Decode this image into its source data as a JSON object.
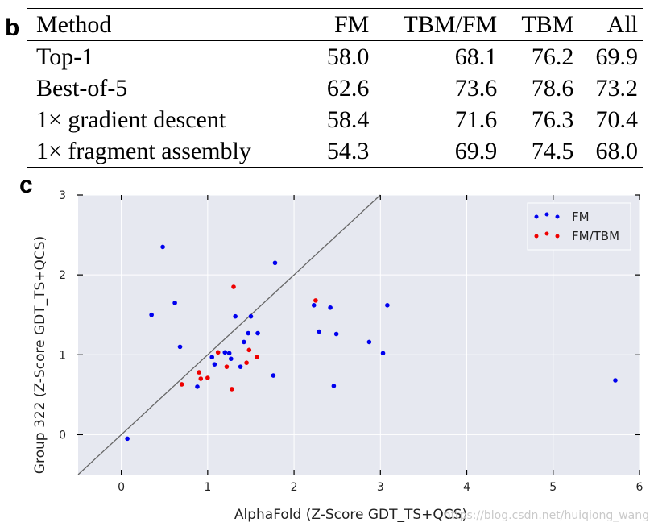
{
  "panel_labels": {
    "table": "b",
    "chart": "c"
  },
  "table": {
    "headers": [
      "Method",
      "FM",
      "TBM/FM",
      "TBM",
      "All"
    ],
    "rows": [
      [
        "Top-1",
        "58.0",
        "68.1",
        "76.2",
        "69.9"
      ],
      [
        "Best-of-5",
        "62.6",
        "73.6",
        "78.6",
        "73.2"
      ],
      [
        "1× gradient descent",
        "58.4",
        "71.6",
        "76.3",
        "70.4"
      ],
      [
        "1× fragment assembly",
        "54.3",
        "69.9",
        "74.5",
        "68.0"
      ]
    ]
  },
  "chart_data": {
    "type": "scatter",
    "title": "",
    "xlabel": "AlphaFold (Z-Score GDT_TS+QCS)",
    "ylabel": "Group 322 (Z-Score GDT_TS+QCS)",
    "xlim": [
      -0.5,
      6
    ],
    "ylim": [
      -0.5,
      3
    ],
    "xticks": [
      "0",
      "1",
      "2",
      "3",
      "4",
      "5",
      "6"
    ],
    "yticks": [
      "0",
      "1",
      "2",
      "3"
    ],
    "grid": true,
    "legend_position": "top-right",
    "diagonal_line": true,
    "colors": {
      "FM": "#0000ee",
      "FM/TBM": "#ee0000",
      "background": "#e6e8f0",
      "grid": "#ffffff",
      "diagonal": "#666666"
    },
    "series": [
      {
        "name": "FM",
        "points": [
          [
            0.07,
            -0.05
          ],
          [
            0.35,
            1.5
          ],
          [
            0.48,
            2.35
          ],
          [
            0.62,
            1.65
          ],
          [
            0.68,
            1.1
          ],
          [
            0.88,
            0.6
          ],
          [
            1.05,
            0.97
          ],
          [
            1.08,
            0.88
          ],
          [
            1.2,
            1.03
          ],
          [
            1.25,
            1.02
          ],
          [
            1.27,
            0.95
          ],
          [
            1.32,
            1.48
          ],
          [
            1.38,
            0.85
          ],
          [
            1.42,
            1.16
          ],
          [
            1.47,
            1.27
          ],
          [
            1.5,
            1.48
          ],
          [
            1.58,
            1.27
          ],
          [
            1.76,
            0.74
          ],
          [
            1.78,
            2.15
          ],
          [
            2.23,
            1.62
          ],
          [
            2.29,
            1.29
          ],
          [
            2.42,
            1.59
          ],
          [
            2.46,
            0.61
          ],
          [
            2.49,
            1.26
          ],
          [
            2.87,
            1.16
          ],
          [
            3.03,
            1.02
          ],
          [
            3.08,
            1.62
          ],
          [
            5.72,
            0.68
          ]
        ]
      },
      {
        "name": "FM/TBM",
        "points": [
          [
            0.7,
            0.63
          ],
          [
            0.9,
            0.78
          ],
          [
            0.92,
            0.7
          ],
          [
            1.0,
            0.71
          ],
          [
            1.12,
            1.03
          ],
          [
            1.22,
            0.85
          ],
          [
            1.28,
            0.57
          ],
          [
            1.3,
            1.85
          ],
          [
            1.45,
            0.9
          ],
          [
            1.48,
            1.06
          ],
          [
            1.57,
            0.97
          ],
          [
            2.25,
            1.68
          ]
        ]
      }
    ]
  },
  "watermark": "https://blog.csdn.net/huiqiong_wang"
}
